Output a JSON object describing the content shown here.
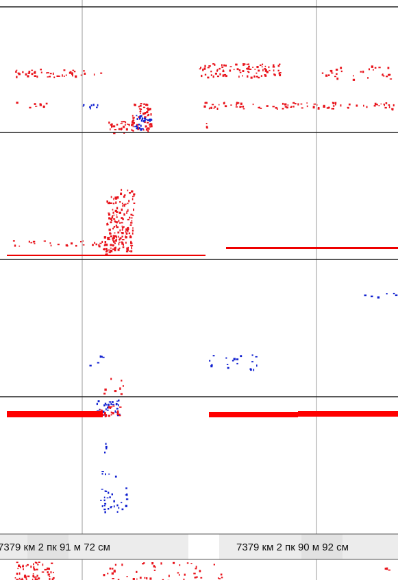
{
  "coordinates": {
    "left": "7379 км 2 пк 91 м 72 см",
    "right": "7379 км 2 пк 90 м 92 см"
  }
}
